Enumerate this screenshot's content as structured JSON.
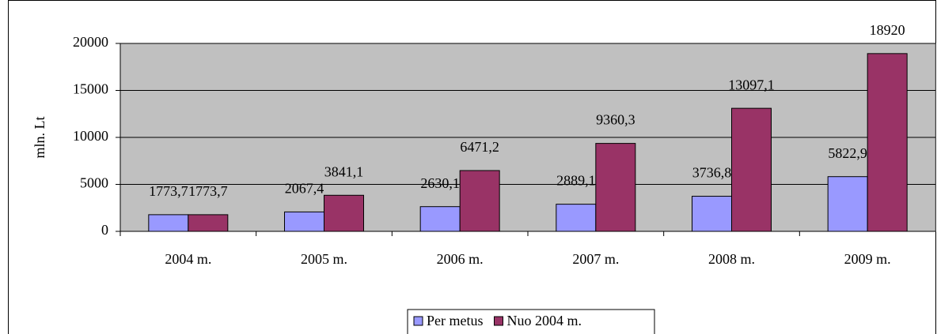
{
  "chart_data": {
    "type": "bar",
    "y_label": "mln. Lt",
    "categories": [
      "2004 m.",
      "2005 m.",
      "2006 m.",
      "2007 m.",
      "2008 m.",
      "2009 m."
    ],
    "series": [
      {
        "name": "Per metus",
        "color": "#9999ff",
        "values": [
          1773.7,
          2067.4,
          2630.1,
          2889.1,
          3736.8,
          5822.9
        ],
        "value_labels": [
          "1773,7",
          "2067,4",
          "2630,1",
          "2889,1",
          "3736,8",
          "5822,9"
        ]
      },
      {
        "name": "Nuo 2004 m.",
        "color": "#993366",
        "values": [
          1773.7,
          3841.1,
          6471.2,
          9360.3,
          13097.1,
          18920
        ],
        "value_labels": [
          "1773,7",
          "3841,1",
          "6471,2",
          "9360,3",
          "13097,1",
          "18920"
        ]
      }
    ],
    "ylim": [
      0,
      20000
    ],
    "yticks": [
      0,
      5000,
      10000,
      15000,
      20000
    ],
    "grid": true,
    "legend": "bottom"
  }
}
